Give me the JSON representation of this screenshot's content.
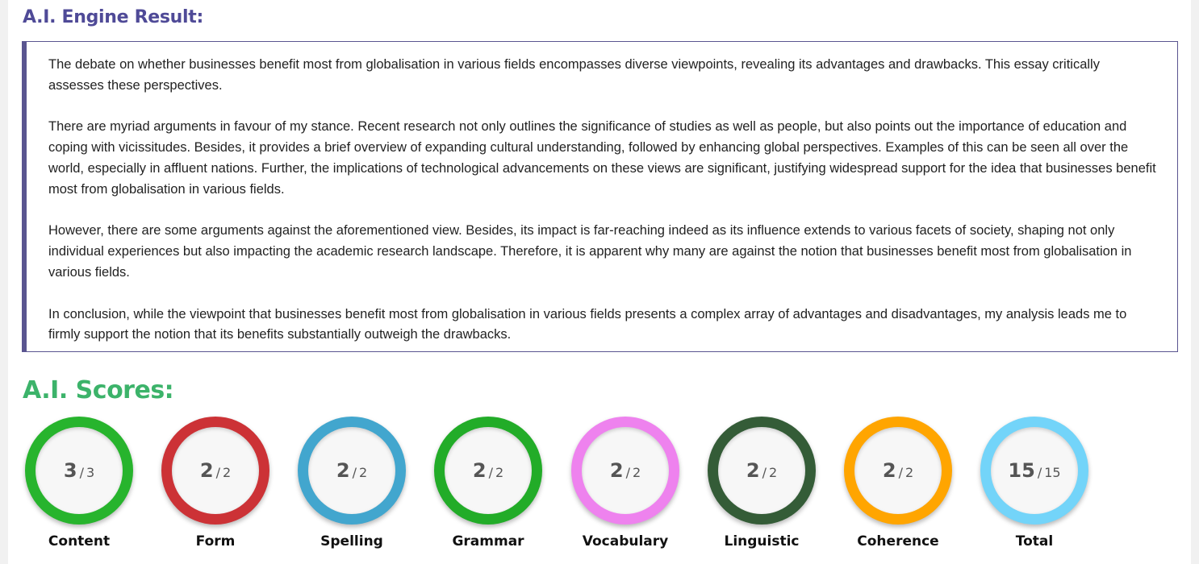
{
  "result_title": "A.I. Engine Result:",
  "essay": {
    "paragraphs": [
      "The debate on whether businesses benefit most from globalisation in various fields encompasses diverse viewpoints, revealing its advantages and drawbacks. This essay critically assesses these perspectives.",
      "There are myriad arguments in favour of my stance. Recent research not only outlines the significance of studies as well as people, but also points out the importance of education and coping with vicissitudes. Besides, it provides a brief overview of expanding cultural understanding, followed by enhancing global perspectives. Examples of this can be seen all over the world, especially in affluent nations. Further, the implications of technological advancements on these views are significant, justifying widespread support for the idea that businesses benefit most from globalisation in various fields.",
      "However, there are some arguments against the aforementioned view. Besides, its impact is far-reaching indeed as its influence extends to various facets of society, shaping not only individual experiences but also impacting the academic research landscape. Therefore, it is apparent why many are against the notion that businesses benefit most from globalisation in various fields.",
      "In conclusion, while the viewpoint that businesses benefit most from globalisation in various fields presents a complex array of advantages and disadvantages, my analysis leads me to firmly support the notion that its benefits substantially outweigh the drawbacks."
    ]
  },
  "scores_title": "A.I. Scores:",
  "scores": [
    {
      "label": "Content",
      "value": "3",
      "sep": "/",
      "max": "3",
      "color": "#27b42d"
    },
    {
      "label": "Form",
      "value": "2",
      "sep": "/",
      "max": "2",
      "color": "#cc3236"
    },
    {
      "label": "Spelling",
      "value": "2",
      "sep": "/",
      "max": "2",
      "color": "#42a6ce"
    },
    {
      "label": "Grammar",
      "value": "2",
      "sep": "/",
      "max": "2",
      "color": "#22ac28"
    },
    {
      "label": "Vocabulary",
      "value": "2",
      "sep": "/",
      "max": "2",
      "color": "#ee82ee"
    },
    {
      "label": "Linguistic",
      "value": "2",
      "sep": "/",
      "max": "2",
      "color": "#345c37"
    },
    {
      "label": "Coherence",
      "value": "2",
      "sep": "/",
      "max": "2",
      "color": "#ffa500"
    },
    {
      "label": "Total",
      "value": "15",
      "sep": "/",
      "max": "15",
      "color": "#73d4f9"
    }
  ]
}
